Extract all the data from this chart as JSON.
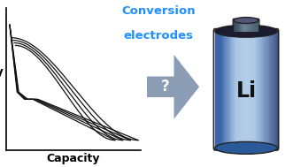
{
  "title_line1": "Conversion",
  "title_line2": "electrodes",
  "title_color": "#1E90FF",
  "xlabel": "Capacity",
  "ylabel": "V",
  "bg_color": "#ffffff",
  "curve_color": "#111111",
  "arrow_color": "#8a9db5",
  "battery_label": "Li",
  "figsize": [
    3.31,
    1.89
  ],
  "dpi": 100
}
